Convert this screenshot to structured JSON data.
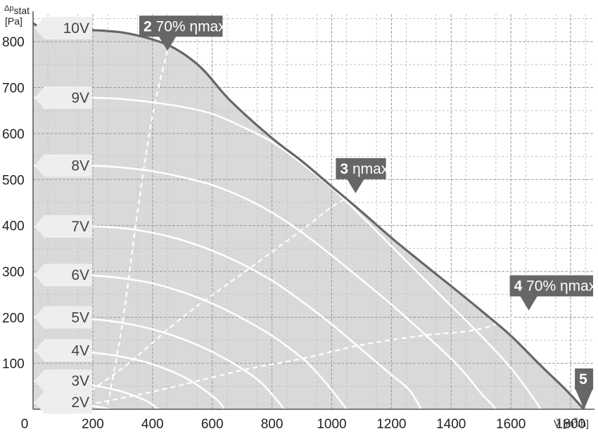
{
  "colors": {
    "background": "#ffffff",
    "grid": "#9a9a9a",
    "grid_minor": "#c4c4c4",
    "area_fill": "#d9d9d9",
    "max_curve": "#666666",
    "voltage_curves": "#ffffff",
    "marker_fill": "#666666",
    "voltage_tag_fill": "#eeeeee"
  },
  "chart_data": {
    "type": "line",
    "xlabel": "V̇ [m³/h]",
    "ylabel": "Δp_stat [Pa]",
    "ylabel_top": "Δp",
    "ylabel_sub": "stat",
    "ylabel_unit": "[Pa]",
    "xlabel_prefix": "V̇ [m",
    "xlabel_sup": "3",
    "xlabel_suffix": "/h]",
    "xlim": [
      0,
      1880
    ],
    "ylim": [
      0,
      860
    ],
    "x_ticks": [
      0,
      200,
      400,
      600,
      800,
      1000,
      1200,
      1400,
      1600,
      1800
    ],
    "y_ticks": [
      100,
      200,
      300,
      400,
      500,
      600,
      700,
      800
    ],
    "grid": true,
    "series": [
      {
        "name": "10V",
        "x": [
          0,
          50,
          230,
          340,
          460,
          560,
          660,
          800,
          900,
          1000,
          1100,
          1200,
          1300,
          1400,
          1500,
          1600,
          1700,
          1780,
          1845
        ],
        "y": [
          840,
          828,
          824,
          815,
          790,
          745,
          672,
          590,
          540,
          485,
          430,
          373,
          320,
          268,
          215,
          160,
          95,
          45,
          0
        ]
      },
      {
        "name": "9V",
        "x": [
          0,
          100,
          200,
          300,
          400,
          500,
          600,
          700,
          800,
          900,
          1000,
          1100,
          1200,
          1300,
          1400,
          1500,
          1600,
          1680,
          1700
        ],
        "y": [
          678,
          678,
          678,
          675,
          668,
          658,
          643,
          615,
          582,
          535,
          482,
          420,
          355,
          290,
          225,
          160,
          90,
          20,
          0
        ]
      },
      {
        "name": "8V",
        "x": [
          0,
          100,
          200,
          300,
          400,
          500,
          600,
          700,
          800,
          900,
          1000,
          1100,
          1200,
          1300,
          1400,
          1450,
          1500,
          1540,
          1550
        ],
        "y": [
          530,
          530,
          530,
          526,
          518,
          505,
          488,
          462,
          428,
          385,
          335,
          282,
          228,
          170,
          110,
          75,
          35,
          8,
          0
        ]
      },
      {
        "name": "7V",
        "x": [
          0,
          100,
          200,
          300,
          400,
          500,
          600,
          700,
          800,
          900,
          1000,
          1100,
          1200,
          1260,
          1300
        ],
        "y": [
          398,
          398,
          398,
          394,
          384,
          368,
          345,
          316,
          280,
          235,
          185,
          130,
          75,
          42,
          0
        ]
      },
      {
        "name": "6V",
        "x": [
          0,
          100,
          200,
          300,
          400,
          500,
          600,
          700,
          800,
          900,
          950,
          1000,
          1050
        ],
        "y": [
          292,
          292,
          291,
          285,
          274,
          255,
          230,
          198,
          160,
          112,
          80,
          42,
          0
        ]
      },
      {
        "name": "5V",
        "x": [
          0,
          100,
          200,
          300,
          400,
          500,
          600,
          700,
          760,
          810,
          840
        ],
        "y": [
          200,
          199,
          196,
          188,
          174,
          153,
          125,
          88,
          60,
          25,
          0
        ]
      },
      {
        "name": "4V",
        "x": [
          0,
          100,
          200,
          300,
          400,
          500,
          560,
          620,
          640
        ],
        "y": [
          128,
          127,
          123,
          114,
          98,
          72,
          48,
          18,
          0
        ]
      },
      {
        "name": "3V",
        "x": [
          0,
          100,
          200,
          300,
          380,
          420
        ],
        "y": [
          62,
          60,
          52,
          38,
          18,
          0
        ]
      },
      {
        "name": "2V",
        "x": [
          0,
          100,
          200,
          260
        ],
        "y": [
          15,
          13,
          7,
          0
        ]
      }
    ],
    "reference_lines": [
      {
        "x": [
          250,
          300,
          350,
          400,
          450
        ],
        "y": [
          10,
          190,
          430,
          640,
          780
        ]
      },
      {
        "x": [
          100,
          300,
          500,
          700,
          900,
          1000,
          1080
        ],
        "y": [
          0,
          90,
          200,
          295,
          390,
          440,
          470
        ]
      },
      {
        "x": [
          100,
          400,
          700,
          900,
          1100,
          1300,
          1500,
          1660
        ],
        "y": [
          0,
          38,
          85,
          110,
          140,
          160,
          175,
          215
        ]
      }
    ],
    "annotations": {
      "voltages": [
        {
          "label": "10V",
          "y": 842
        },
        {
          "label": "9V",
          "y": 678
        },
        {
          "label": "8V",
          "y": 530
        },
        {
          "label": "7V",
          "y": 398
        },
        {
          "label": "6V",
          "y": 292
        },
        {
          "label": "5V",
          "y": 200
        },
        {
          "label": "4V",
          "y": 128
        },
        {
          "label": "3V",
          "y": 62
        },
        {
          "label": "2V",
          "y": 15
        }
      ],
      "points": [
        {
          "id": "2",
          "text": "70% ηmax",
          "x": 450,
          "y": 780
        },
        {
          "id": "3",
          "text": "ηmax",
          "x": 1080,
          "y": 470
        },
        {
          "id": "4",
          "text": "70% ηmax",
          "x": 1660,
          "y": 215
        },
        {
          "id": "5",
          "text": "",
          "x": 1845,
          "y": 0
        }
      ]
    }
  }
}
